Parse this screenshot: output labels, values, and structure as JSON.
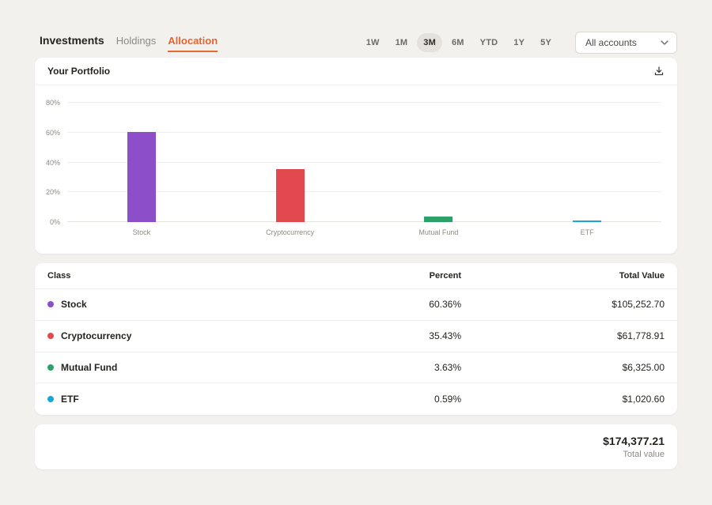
{
  "header": {
    "tabs": [
      {
        "label": "Investments",
        "style": "primary",
        "active": false
      },
      {
        "label": "Holdings",
        "style": "secondary",
        "active": false
      },
      {
        "label": "Allocation",
        "style": "secondary",
        "active": true
      }
    ],
    "ranges": [
      {
        "label": "1W",
        "selected": false
      },
      {
        "label": "1M",
        "selected": false
      },
      {
        "label": "3M",
        "selected": true
      },
      {
        "label": "6M",
        "selected": false
      },
      {
        "label": "YTD",
        "selected": false
      },
      {
        "label": "1Y",
        "selected": false
      },
      {
        "label": "5Y",
        "selected": false
      }
    ],
    "account_select": {
      "value": "All accounts",
      "icon": "chevron-down-icon"
    }
  },
  "portfolio_card": {
    "title": "Your Portfolio",
    "download_icon": "download-icon"
  },
  "chart_data": {
    "type": "bar",
    "categories": [
      "Stock",
      "Cryptocurrency",
      "Mutual Fund",
      "ETF"
    ],
    "values": [
      60.36,
      35.43,
      3.63,
      0.59
    ],
    "colors": [
      "#8d4ec9",
      "#e2494f",
      "#2da268",
      "#16a8d6"
    ],
    "title": "Your Portfolio",
    "xlabel": "",
    "ylabel": "",
    "ylim": [
      0,
      80
    ],
    "yticks": [
      0,
      20,
      40,
      60,
      80
    ],
    "ytick_labels": [
      "0%",
      "20%",
      "40%",
      "60%",
      "80%"
    ],
    "grid": true,
    "legend": false
  },
  "table": {
    "columns": [
      "Class",
      "Percent",
      "Total Value"
    ],
    "rows": [
      {
        "class": "Stock",
        "color": "#8d4ec9",
        "percent": "60.36%",
        "total_value": "$105,252.70"
      },
      {
        "class": "Cryptocurrency",
        "color": "#e2494f",
        "percent": "35.43%",
        "total_value": "$61,778.91"
      },
      {
        "class": "Mutual Fund",
        "color": "#2da268",
        "percent": "3.63%",
        "total_value": "$6,325.00"
      },
      {
        "class": "ETF",
        "color": "#16a8d6",
        "percent": "0.59%",
        "total_value": "$1,020.60"
      }
    ]
  },
  "summary": {
    "total": "$174,377.21",
    "label": "Total value"
  }
}
